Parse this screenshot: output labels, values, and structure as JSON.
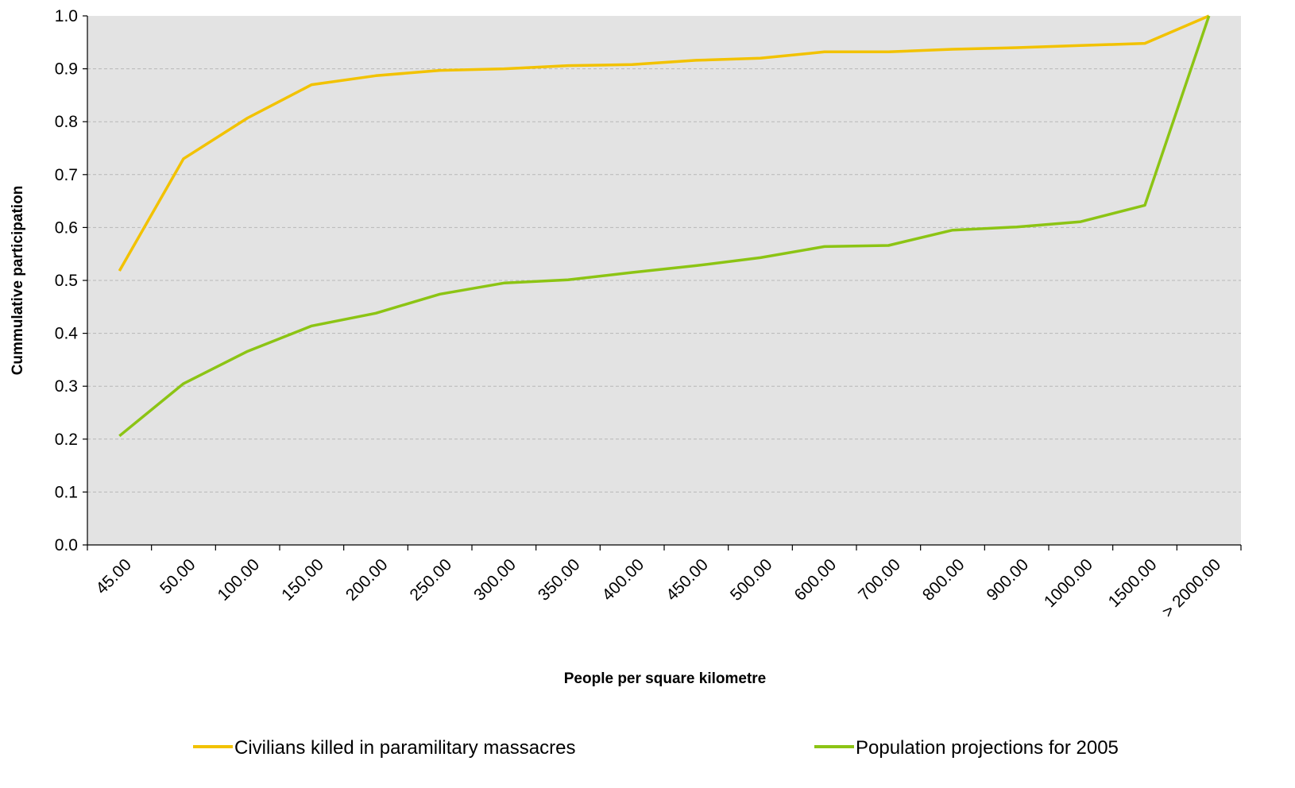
{
  "chart_data": {
    "type": "line",
    "title": "",
    "xlabel": "People per square kilometre",
    "ylabel": "Cummulative participation",
    "categories": [
      "45.00",
      "50.00",
      "100.00",
      "150.00",
      "200.00",
      "250.00",
      "300.00",
      "350.00",
      "400.00",
      "450.00",
      "500.00",
      "600.00",
      "700.00",
      "800.00",
      "900.00",
      "1000.00",
      "1500.00",
      "> 2000.00"
    ],
    "y_ticks": [
      "0.0",
      "0.1",
      "0.2",
      "0.3",
      "0.4",
      "0.5",
      "0.6",
      "0.7",
      "0.8",
      "0.9",
      "1.0"
    ],
    "ylim": [
      0,
      1.0
    ],
    "grid": true,
    "grid_style": "dashed horizontal",
    "plot_background": "#e3e3e3",
    "legend_position": "bottom",
    "series": [
      {
        "name": "Civilians killed in paramilitary massacres",
        "color": "#f2c200",
        "values": [
          0.518,
          0.73,
          0.807,
          0.87,
          0.887,
          0.897,
          0.9,
          0.906,
          0.908,
          0.916,
          0.92,
          0.932,
          0.932,
          0.937,
          0.94,
          0.944,
          0.948,
          1.0
        ]
      },
      {
        "name": "Population projections for 2005",
        "color": "#8cc414",
        "values": [
          0.206,
          0.305,
          0.366,
          0.414,
          0.438,
          0.474,
          0.495,
          0.501,
          0.515,
          0.528,
          0.543,
          0.564,
          0.566,
          0.595,
          0.601,
          0.611,
          0.642,
          1.0
        ]
      }
    ]
  }
}
